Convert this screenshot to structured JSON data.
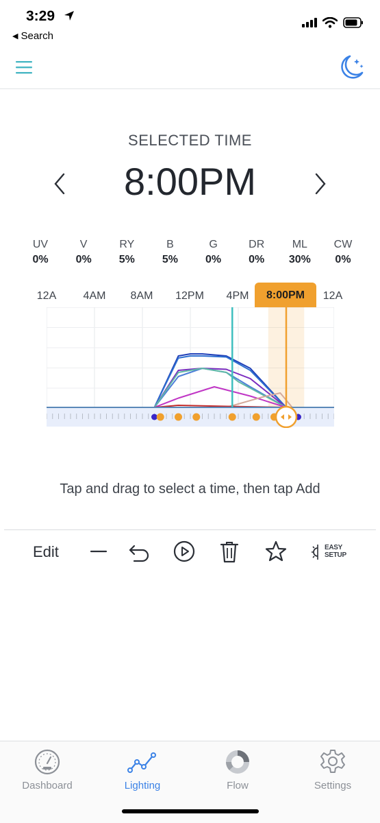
{
  "status_bar": {
    "time": "3:29",
    "back_label": "Search"
  },
  "header": {
    "menu_icon": "hamburger-icon",
    "night_icon": "moon-stars-icon"
  },
  "selected": {
    "label": "SELECTED TIME",
    "time": "8:00PM"
  },
  "channels": [
    {
      "name": "UV",
      "value": "0%"
    },
    {
      "name": "V",
      "value": "0%"
    },
    {
      "name": "RY",
      "value": "5%"
    },
    {
      "name": "B",
      "value": "5%"
    },
    {
      "name": "G",
      "value": "0%"
    },
    {
      "name": "DR",
      "value": "0%"
    },
    {
      "name": "ML",
      "value": "30%"
    },
    {
      "name": "CW",
      "value": "0%"
    }
  ],
  "timeline": {
    "ticks": [
      "12A",
      "4AM",
      "8AM",
      "12PM",
      "4PM",
      "8:00PM",
      "12A"
    ],
    "selected_label": "8:00PM",
    "accent": "#f0a02e",
    "now_line_color": "#3fbfbf"
  },
  "chart_data": {
    "type": "line",
    "x_unit": "hour",
    "xlim": [
      0,
      24
    ],
    "ylim": [
      0,
      100
    ],
    "x_ticks": [
      "12A",
      "4AM",
      "8AM",
      "12PM",
      "4PM",
      "8PM",
      "12A"
    ],
    "current_time_hour": 15.5,
    "selected_time_hour": 20,
    "series": [
      {
        "color": "#1f3fb8",
        "x": [
          0,
          9,
          11,
          12,
          13,
          15,
          17,
          20,
          24
        ],
        "y": [
          0,
          0,
          50,
          52,
          52,
          50,
          38,
          0,
          0
        ]
      },
      {
        "color": "#2d6fd0",
        "x": [
          0,
          9,
          11,
          12,
          13,
          15,
          17,
          20,
          24
        ],
        "y": [
          0,
          0,
          48,
          50,
          50,
          49,
          36,
          0,
          0
        ]
      },
      {
        "color": "#7a2bbf",
        "x": [
          0,
          9,
          11,
          13,
          15,
          17,
          20,
          24
        ],
        "y": [
          0,
          0,
          36,
          38,
          37,
          28,
          0,
          0
        ]
      },
      {
        "color": "#4d7fd8",
        "x": [
          0,
          9,
          11,
          13,
          15,
          17,
          20,
          24
        ],
        "y": [
          0,
          0,
          30,
          38,
          34,
          20,
          0,
          0
        ]
      },
      {
        "color": "#5fb9a6",
        "x": [
          0,
          9,
          11,
          13,
          15,
          16,
          20,
          24
        ],
        "y": [
          0,
          0,
          34,
          38,
          34,
          25,
          0,
          0
        ]
      },
      {
        "color": "#c035c5",
        "x": [
          0,
          9,
          11,
          14,
          17,
          20,
          24
        ],
        "y": [
          0,
          0,
          9,
          20,
          11,
          0,
          0
        ]
      },
      {
        "color": "#d4aa9b",
        "x": [
          0,
          9,
          15,
          18,
          19.5,
          20.5,
          24
        ],
        "y": [
          0,
          0,
          0,
          10,
          14,
          0,
          0
        ]
      },
      {
        "color": "#c12a2a",
        "x": [
          0,
          9,
          11,
          15,
          20,
          24
        ],
        "y": [
          0,
          0,
          2,
          1,
          0,
          0
        ]
      }
    ],
    "keyframe_hours": [
      9,
      9.5,
      11,
      12.5,
      15.5,
      17.5,
      19,
      21
    ],
    "keyframe_marker_colors": [
      "#3a27c8",
      "#f0a02e"
    ]
  },
  "hint": "Tap and drag to select a time, then tap Add",
  "toolbar": {
    "edit_label": "Edit",
    "easy_setup_line1": "EASY",
    "easy_setup_line2": "SETUP"
  },
  "tabs": [
    {
      "label": "Dashboard",
      "icon": "gauge-icon"
    },
    {
      "label": "Lighting",
      "icon": "line-graph-icon",
      "active": true
    },
    {
      "label": "Flow",
      "icon": "ring-icon"
    },
    {
      "label": "Settings",
      "icon": "gear-icon"
    }
  ],
  "colors": {
    "accent_blue": "#3b82e6",
    "teal": "#3fbfbf",
    "orange": "#f0a02e"
  }
}
